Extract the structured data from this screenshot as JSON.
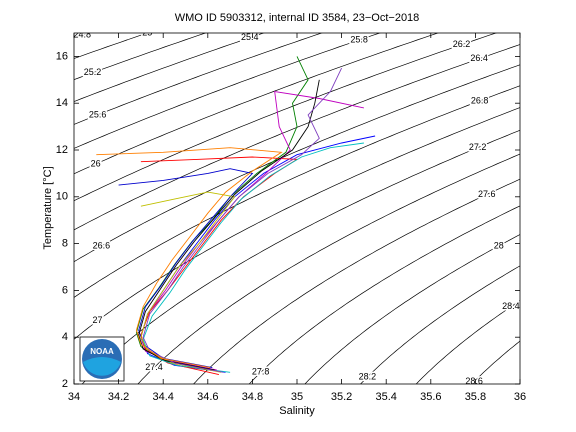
{
  "chart_data": {
    "type": "ts",
    "title": "WMO ID 5903312, internal ID 3584, 23−Oct−2018",
    "x_label": "Salinity",
    "y_label": "Temperature [°C]",
    "logo_text": "NOAA",
    "xlim": [
      34,
      36
    ],
    "ylim": [
      2,
      17
    ],
    "xticks": [
      34,
      34.2,
      34.4,
      34.6,
      34.8,
      35,
      35.2,
      35.4,
      35.6,
      35.8,
      36
    ],
    "yticks": [
      2,
      4,
      6,
      8,
      10,
      12,
      14,
      16
    ],
    "contour_levels": [
      24.8,
      25,
      25.2,
      25.4,
      25.6,
      25.8,
      26,
      26.2,
      26.4,
      26.6,
      26.8,
      27,
      27.2,
      27.4,
      27.6,
      27.8,
      28,
      28.2,
      28.4,
      28.6
    ],
    "series": [
      {
        "color": "#0000ff",
        "x": [
          34.68,
          34.45,
          34.33,
          34.3,
          34.33,
          34.4,
          34.47,
          34.55,
          34.63,
          34.72,
          34.85,
          35.0,
          35.2,
          35.35
        ],
        "values": [
          2.5,
          2.8,
          3.3,
          4,
          5,
          6,
          7,
          8,
          9,
          10,
          11,
          11.8,
          12.3,
          12.6
        ]
      },
      {
        "color": "#008000",
        "x": [
          34.6,
          34.4,
          34.3,
          34.28,
          34.31,
          34.38,
          34.45,
          34.53,
          34.62,
          34.7,
          34.82,
          34.95,
          35.0,
          34.98,
          35.05,
          35.0
        ],
        "values": [
          2.6,
          3.0,
          3.6,
          4.2,
          5.2,
          6.1,
          7.1,
          8.1,
          9.0,
          10,
          11,
          11.9,
          13,
          14,
          15,
          16
        ]
      },
      {
        "color": "#ff0000",
        "x": [
          34.65,
          34.42,
          34.32,
          34.3,
          34.34,
          34.42,
          34.5,
          34.58,
          34.66,
          34.76,
          34.9,
          35.0,
          34.8,
          34.55,
          34.3
        ],
        "values": [
          2.4,
          2.9,
          3.5,
          4.1,
          5.1,
          6.0,
          7.0,
          8.0,
          9.0,
          10,
          11,
          11.6,
          11.7,
          11.6,
          11.5
        ]
      },
      {
        "color": "#0000cc",
        "x": [
          34.62,
          34.4,
          34.31,
          34.29,
          34.32,
          34.39,
          34.46,
          34.54,
          34.62,
          34.71,
          34.8,
          34.7,
          34.6,
          34.4,
          34.2
        ],
        "values": [
          2.7,
          3.1,
          3.7,
          4.3,
          5.3,
          6.2,
          7.2,
          8.2,
          9.1,
          10.1,
          11.0,
          11.2,
          11.0,
          10.7,
          10.5
        ]
      },
      {
        "color": "#00bfbf",
        "x": [
          34.7,
          34.46,
          34.34,
          34.31,
          34.35,
          34.43,
          34.5,
          34.58,
          34.66,
          34.75,
          34.88,
          35.02,
          35.15,
          35.3
        ],
        "values": [
          2.5,
          2.8,
          3.2,
          3.9,
          4.9,
          5.9,
          6.9,
          7.9,
          8.9,
          9.9,
          10.9,
          11.7,
          12.1,
          12.3
        ]
      },
      {
        "color": "#bf00bf",
        "x": [
          34.64,
          34.43,
          34.32,
          34.3,
          34.33,
          34.41,
          34.48,
          34.56,
          34.65,
          34.74,
          34.86,
          34.97,
          34.92,
          34.9,
          35.1,
          35.3
        ],
        "values": [
          2.6,
          3.0,
          3.4,
          4.0,
          5.0,
          6.0,
          7.0,
          8.0,
          9.0,
          10,
          11,
          12,
          13,
          14.5,
          14.2,
          13.8
        ]
      },
      {
        "color": "#bfbf00",
        "x": [
          34.66,
          34.44,
          34.33,
          34.3,
          34.33,
          34.4,
          34.47,
          34.56,
          34.64,
          34.72,
          34.6,
          34.45,
          34.3
        ],
        "values": [
          2.5,
          2.9,
          3.4,
          4.0,
          5.0,
          6.0,
          7.0,
          8.0,
          9.0,
          10,
          10.2,
          9.9,
          9.6
        ]
      },
      {
        "color": "#000000",
        "x": [
          34.63,
          34.41,
          34.31,
          34.29,
          34.32,
          34.39,
          34.46,
          34.54,
          34.63,
          34.72,
          34.84,
          34.98,
          35.05,
          35.08,
          35.1
        ],
        "values": [
          2.6,
          3.0,
          3.5,
          4.1,
          5.1,
          6.1,
          7.1,
          8.1,
          9.1,
          10.1,
          11.1,
          12,
          13,
          14,
          15
        ]
      },
      {
        "color": "#7f3fbf",
        "x": [
          34.67,
          34.45,
          34.34,
          34.31,
          34.34,
          34.42,
          34.49,
          34.57,
          34.65,
          34.74,
          34.87,
          35.02,
          35.1,
          35.05,
          35.15,
          35.2
        ],
        "values": [
          2.5,
          2.9,
          3.4,
          4.0,
          5.0,
          6.0,
          7.0,
          8.0,
          9.0,
          10,
          11,
          11.8,
          12.5,
          13.5,
          14.5,
          15.5
        ]
      },
      {
        "color": "#ff7f00",
        "x": [
          34.61,
          34.39,
          34.3,
          34.28,
          34.31,
          34.37,
          34.44,
          34.52,
          34.6,
          34.68,
          34.8,
          34.93,
          34.7,
          34.4,
          34.1
        ],
        "values": [
          2.7,
          3.1,
          3.7,
          4.3,
          5.3,
          6.3,
          7.3,
          8.3,
          9.3,
          10.2,
          11.1,
          11.9,
          12.1,
          11.9,
          11.8
        ]
      }
    ]
  }
}
